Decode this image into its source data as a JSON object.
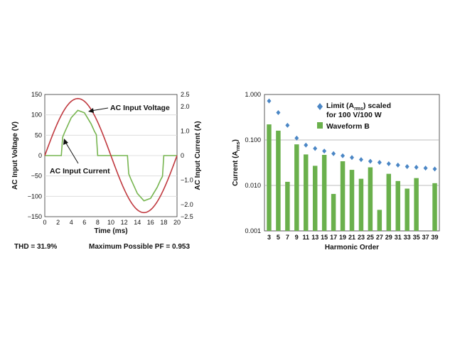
{
  "chart_data": [
    {
      "type": "line",
      "title": "",
      "xlabel": "Time (ms)",
      "ylabel": "AC Input Voltage (V)",
      "y2label": "AC Input Current (A)",
      "xlim": [
        0,
        20
      ],
      "ylim": [
        -150,
        150
      ],
      "y2lim": [
        -2.5,
        2.5
      ],
      "x_ticks": [
        "0",
        "2",
        "4",
        "6",
        "8",
        "10",
        "12",
        "14",
        "16",
        "18",
        "20"
      ],
      "y_ticks": [
        "150",
        "100",
        "50",
        "0",
        "−50",
        "−100",
        "−150"
      ],
      "y2_ticks": [
        "2.5",
        "2.0",
        "1.0",
        "0",
        "−1.0",
        "−2.0",
        "−2.5"
      ],
      "grid": true,
      "voltage_amplitude": 140,
      "series": [
        {
          "name": "AC Input Voltage",
          "axis": "left",
          "color": "#c0393f",
          "x": [
            0,
            1,
            2,
            3,
            4,
            5,
            6,
            7,
            8,
            9,
            10,
            11,
            12,
            13,
            14,
            15,
            16,
            17,
            18,
            19,
            20
          ],
          "y": [
            0,
            43.3,
            82.3,
            113.3,
            133.1,
            140,
            133.1,
            113.3,
            82.3,
            43.3,
            0,
            -43.3,
            -82.3,
            -113.3,
            -133.1,
            -140,
            -133.1,
            -113.3,
            -82.3,
            -43.3,
            0
          ]
        },
        {
          "name": "AC Input Current",
          "axis": "right",
          "color": "#77b550",
          "x": [
            0,
            2.0,
            2.5,
            2.7,
            3.0,
            4.0,
            5.0,
            6.0,
            7.0,
            7.5,
            7.8,
            8.0,
            12.0,
            12.5,
            12.7,
            13.0,
            14.0,
            15.0,
            16.0,
            17.0,
            17.5,
            17.8,
            18.0,
            20
          ],
          "y": [
            0,
            0,
            0,
            0.75,
            0.95,
            1.55,
            1.85,
            1.75,
            1.3,
            1.0,
            0.85,
            0,
            0,
            0,
            -0.75,
            -0.95,
            -1.55,
            -1.85,
            -1.75,
            -1.3,
            -1.0,
            -0.85,
            0,
            0
          ]
        }
      ],
      "annotations": [
        "AC Input Voltage",
        "AC Input Current"
      ],
      "footer_left": "THD = 31.9%",
      "footer_right": "Maximum Possible PF = 0.953"
    },
    {
      "type": "bar",
      "title": "",
      "xlabel": "Harmonic Order",
      "ylabel_main": "Current (A",
      "ylabel_sub": "rms",
      "ylabel_close": ")",
      "yscale": "log",
      "ylim": [
        0.001,
        1
      ],
      "y_ticks": [
        "1.000",
        "0.100",
        "0.010",
        "0.001"
      ],
      "grid": true,
      "categories": [
        "3",
        "5",
        "7",
        "9",
        "11",
        "13",
        "15",
        "17",
        "19",
        "21",
        "23",
        "25",
        "27",
        "29",
        "31",
        "33",
        "35",
        "37",
        "39"
      ],
      "series": [
        {
          "name": "Waveform B",
          "kind": "bar",
          "color": "#6ab04c",
          "values": [
            0.22,
            0.16,
            0.012,
            0.08,
            0.048,
            0.027,
            0.047,
            0.0065,
            0.034,
            0.022,
            0.014,
            0.025,
            0.0029,
            0.018,
            0.0125,
            0.0085,
            0.0145,
            null,
            0.0112
          ]
        },
        {
          "name": "Limit (Arms) scaled for 100 V/100 W",
          "kind": "marker",
          "color": "#4a86c5",
          "values": [
            0.72,
            0.4,
            0.21,
            0.11,
            0.077,
            0.065,
            0.057,
            0.05,
            0.045,
            0.041,
            0.037,
            0.034,
            0.032,
            0.03,
            0.028,
            0.026,
            0.025,
            0.024,
            0.023
          ]
        }
      ],
      "legend": {
        "placement": "top-right",
        "limit_line1_a": "Limit (A",
        "limit_line1_sub": "rms",
        "limit_line1_b": ") scaled",
        "limit_line2": "for 100 V/100 W",
        "bar_label": "Waveform B"
      }
    }
  ]
}
